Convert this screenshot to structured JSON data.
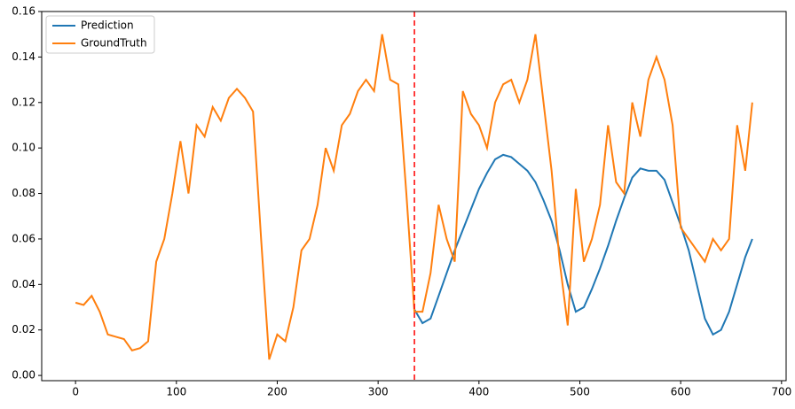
{
  "chart_data": {
    "type": "line",
    "x": [
      0,
      8,
      16,
      24,
      32,
      40,
      48,
      56,
      64,
      72,
      80,
      88,
      96,
      104,
      112,
      120,
      128,
      136,
      144,
      152,
      160,
      168,
      176,
      184,
      192,
      200,
      208,
      216,
      224,
      232,
      240,
      248,
      256,
      264,
      272,
      280,
      288,
      296,
      304,
      312,
      320,
      328,
      336,
      344,
      352,
      360,
      368,
      376,
      384,
      392,
      400,
      408,
      416,
      424,
      432,
      440,
      448,
      456,
      464,
      472,
      480,
      488,
      496,
      504,
      512,
      520,
      528,
      536,
      544,
      552,
      560,
      568,
      576,
      584,
      592,
      600,
      608,
      616,
      624,
      632,
      640,
      648,
      656,
      664,
      671
    ],
    "series": [
      {
        "name": "Prediction",
        "color": "#1f77b4",
        "values": [
          null,
          null,
          null,
          null,
          null,
          null,
          null,
          null,
          null,
          null,
          null,
          null,
          null,
          null,
          null,
          null,
          null,
          null,
          null,
          null,
          null,
          null,
          null,
          null,
          null,
          null,
          null,
          null,
          null,
          null,
          null,
          null,
          null,
          null,
          null,
          null,
          null,
          null,
          null,
          null,
          null,
          null,
          0.029,
          0.023,
          0.025,
          0.035,
          0.045,
          0.055,
          0.064,
          0.073,
          0.082,
          0.089,
          0.095,
          0.097,
          0.096,
          0.093,
          0.09,
          0.085,
          0.077,
          0.068,
          0.055,
          0.04,
          0.028,
          0.03,
          0.038,
          0.047,
          0.057,
          0.068,
          0.078,
          0.087,
          0.091,
          0.09,
          0.09,
          0.086,
          0.076,
          0.066,
          0.055,
          0.04,
          0.025,
          0.018,
          0.02,
          0.028,
          0.04,
          0.052,
          0.06
        ]
      },
      {
        "name": "GroundTruth",
        "color": "#ff7f0e",
        "values": [
          0.032,
          0.031,
          0.035,
          0.028,
          0.018,
          0.017,
          0.016,
          0.011,
          0.012,
          0.015,
          0.05,
          0.06,
          0.08,
          0.103,
          0.08,
          0.11,
          0.105,
          0.118,
          0.112,
          0.122,
          0.126,
          0.122,
          0.116,
          0.06,
          0.007,
          0.018,
          0.015,
          0.03,
          0.055,
          0.06,
          0.075,
          0.1,
          0.09,
          0.11,
          0.115,
          0.125,
          0.13,
          0.125,
          0.15,
          0.13,
          0.128,
          0.08,
          0.028,
          0.028,
          0.045,
          0.075,
          0.06,
          0.05,
          0.125,
          0.115,
          0.11,
          0.1,
          0.12,
          0.128,
          0.13,
          0.12,
          0.13,
          0.15,
          0.12,
          0.09,
          0.05,
          0.022,
          0.082,
          0.05,
          0.06,
          0.075,
          0.11,
          0.085,
          0.08,
          0.12,
          0.105,
          0.13,
          0.14,
          0.13,
          0.11,
          0.065,
          0.06,
          0.055,
          0.05,
          0.06,
          0.055,
          0.06,
          0.11,
          0.09,
          0.12
        ]
      }
    ],
    "vline_x": 336,
    "vline_color": "#ff0000",
    "xlim": [
      -33.55,
      704.55
    ],
    "ylim": [
      -0.0023,
      0.16
    ],
    "xticks": [
      0,
      100,
      200,
      300,
      400,
      500,
      600,
      700
    ],
    "yticks": [
      {
        "value": 0,
        "label": "0.00"
      },
      {
        "value": 0.02,
        "label": "0.02"
      },
      {
        "value": 0.04,
        "label": "0.04"
      },
      {
        "value": 0.06,
        "label": "0.06"
      },
      {
        "value": 0.08,
        "label": "0.08"
      },
      {
        "value": 0.1,
        "label": "0.10"
      },
      {
        "value": 0.12,
        "label": "0.12"
      },
      {
        "value": 0.14,
        "label": "0.14"
      },
      {
        "value": 0.16,
        "label": "0.16"
      }
    ],
    "legend": "upper left"
  }
}
